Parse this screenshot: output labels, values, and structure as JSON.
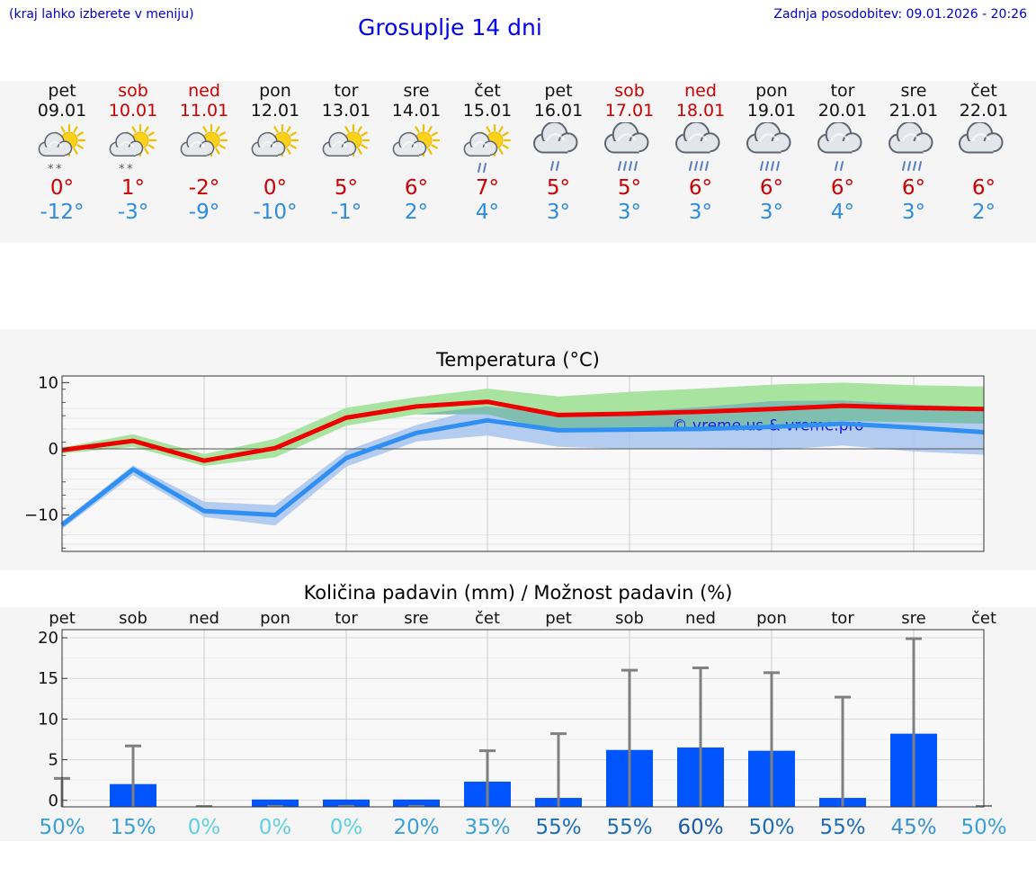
{
  "header": {
    "note": "(kraj lahko izberete v meniju)",
    "title": "Grosuplje 14 dni",
    "updated": "Zadnja posodobitev: 09.01.2026 - 20:26"
  },
  "days": [
    {
      "name": "pet",
      "date": "09.01",
      "weekend": false,
      "icon": "sun-cloud-snow-icon",
      "max": "0°",
      "min": "-12°"
    },
    {
      "name": "sob",
      "date": "10.01",
      "weekend": true,
      "icon": "sun-cloud-snow-icon",
      "max": "1°",
      "min": "-3°"
    },
    {
      "name": "ned",
      "date": "11.01",
      "weekend": true,
      "icon": "sun-cloud-icon",
      "max": "-2°",
      "min": "-9°"
    },
    {
      "name": "pon",
      "date": "12.01",
      "weekend": false,
      "icon": "sun-cloud-icon",
      "max": "0°",
      "min": "-10°"
    },
    {
      "name": "tor",
      "date": "13.01",
      "weekend": false,
      "icon": "sun-cloud-icon",
      "max": "5°",
      "min": "-1°"
    },
    {
      "name": "sre",
      "date": "14.01",
      "weekend": false,
      "icon": "sun-cloud-icon",
      "max": "6°",
      "min": "2°"
    },
    {
      "name": "čet",
      "date": "15.01",
      "weekend": false,
      "icon": "sun-cloud-rain-icon",
      "max": "7°",
      "min": "4°"
    },
    {
      "name": "pet",
      "date": "16.01",
      "weekend": false,
      "icon": "cloud-rain-icon",
      "max": "5°",
      "min": "3°"
    },
    {
      "name": "sob",
      "date": "17.01",
      "weekend": true,
      "icon": "cloud-heavy-rain-icon",
      "max": "5°",
      "min": "3°"
    },
    {
      "name": "ned",
      "date": "18.01",
      "weekend": true,
      "icon": "cloud-heavy-rain-icon",
      "max": "6°",
      "min": "3°"
    },
    {
      "name": "pon",
      "date": "19.01",
      "weekend": false,
      "icon": "cloud-heavy-rain-icon",
      "max": "6°",
      "min": "3°"
    },
    {
      "name": "tor",
      "date": "20.01",
      "weekend": false,
      "icon": "cloud-rain-icon",
      "max": "6°",
      "min": "4°"
    },
    {
      "name": "sre",
      "date": "21.01",
      "weekend": false,
      "icon": "cloud-heavy-rain-icon",
      "max": "6°",
      "min": "3°"
    },
    {
      "name": "čet",
      "date": "22.01",
      "weekend": false,
      "icon": "cloud-icon",
      "max": "6°",
      "min": "2°"
    }
  ],
  "colors": {
    "max_line": "#ee0000",
    "min_line": "#2f8ff2",
    "max_band": "#a8e4a0",
    "min_band": "#a9c4f0",
    "overlap_band": "#7fbfb0",
    "precip_bar": "#0055ff",
    "whisker": "#808080"
  },
  "chart_data": [
    {
      "type": "line",
      "title": "Temperatura (°C)",
      "watermark": "© vreme.us & vreme.pro",
      "x": [
        "09.01",
        "10.01",
        "11.01",
        "12.01",
        "13.01",
        "14.01",
        "15.01",
        "16.01",
        "17.01",
        "18.01",
        "19.01",
        "20.01",
        "21.01",
        "22.01"
      ],
      "ylim": [
        -15.5,
        11
      ],
      "yticks": [
        -10,
        0,
        10
      ],
      "ytick_labels": [
        "−10",
        "0",
        "10"
      ],
      "grid": true,
      "series": [
        {
          "name": "max",
          "values": [
            -0.2,
            1.2,
            -1.8,
            0.1,
            4.7,
            6.4,
            7.1,
            5.1,
            5.3,
            5.6,
            6.0,
            6.5,
            6.2,
            6.0
          ],
          "band_low": [
            -0.7,
            0.3,
            -2.6,
            -1.3,
            3.5,
            5.2,
            5.2,
            2.5,
            2.7,
            3.0,
            3.5,
            4.2,
            4.0,
            3.8
          ],
          "band_high": [
            0.2,
            2.2,
            -0.8,
            1.5,
            6.2,
            7.8,
            9.1,
            7.9,
            8.6,
            9.1,
            9.7,
            10.0,
            9.6,
            9.4
          ]
        },
        {
          "name": "min",
          "values": [
            -11.5,
            -3.1,
            -9.4,
            -10.0,
            -1.4,
            2.4,
            4.3,
            2.8,
            2.9,
            3.0,
            3.3,
            3.8,
            3.2,
            2.5
          ],
          "band_low": [
            -12.1,
            -4.0,
            -10.3,
            -11.6,
            -2.7,
            1.1,
            2.0,
            0.3,
            0.0,
            -0.1,
            -0.2,
            0.5,
            -0.4,
            -0.9
          ],
          "band_high": [
            -11.0,
            -2.5,
            -8.0,
            -8.5,
            -0.3,
            3.6,
            6.4,
            5.3,
            5.6,
            6.3,
            7.2,
            7.3,
            6.7,
            6.2
          ]
        }
      ]
    },
    {
      "type": "bar",
      "title": "Količina padavin (mm) / Možnost padavin (%)",
      "categories": [
        "pet",
        "sob",
        "ned",
        "pon",
        "tor",
        "sre",
        "čet",
        "pet",
        "sob",
        "ned",
        "pon",
        "tor",
        "sre",
        "čet"
      ],
      "values": [
        0,
        2.0,
        0,
        0.1,
        0.1,
        0.1,
        2.3,
        0.3,
        6.2,
        6.5,
        6.1,
        0.3,
        8.2,
        0
      ],
      "error_high": [
        2.7,
        6.7,
        0,
        0,
        0,
        0,
        6.1,
        8.2,
        16.0,
        16.3,
        15.7,
        12.7,
        19.9,
        0
      ],
      "chance": [
        "50%",
        "15%",
        "0%",
        "0%",
        "0%",
        "20%",
        "35%",
        "55%",
        "55%",
        "60%",
        "50%",
        "55%",
        "45%",
        "50%"
      ],
      "chance_colors": [
        "#3a9fd8",
        "#3a9fd8",
        "#5fd0e0",
        "#5fd0e0",
        "#5fd0e0",
        "#3a9fd8",
        "#3a9fd8",
        "#1f6db5",
        "#1f6db5",
        "#1a5aa8",
        "#1f6db5",
        "#1f6db5",
        "#3a8fd0",
        "#3a9fd8"
      ],
      "ylim": [
        -0.8,
        21
      ],
      "yticks": [
        0,
        5,
        10,
        15,
        20
      ],
      "ytick_labels": [
        "0",
        "5",
        "10",
        "15",
        "20"
      ],
      "grid": true
    }
  ]
}
